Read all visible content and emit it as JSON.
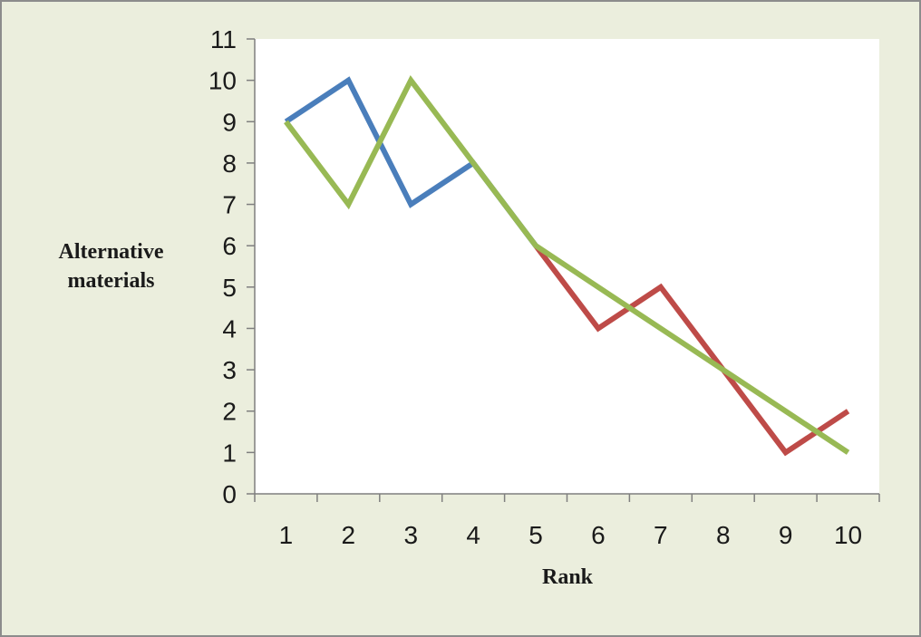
{
  "chart_data": {
    "type": "line",
    "title": "",
    "xlabel": "Rank",
    "ylabel_lines": [
      "Alternative",
      "materials"
    ],
    "x": [
      1,
      2,
      3,
      4,
      5,
      6,
      7,
      8,
      9,
      10
    ],
    "ylim": [
      0,
      11
    ],
    "yticks": [
      0,
      1,
      2,
      3,
      4,
      5,
      6,
      7,
      8,
      9,
      10,
      11
    ],
    "grid": false,
    "legend": "none",
    "series": [
      {
        "color": "#4a7ebb",
        "values": [
          9,
          10,
          7,
          8,
          6,
          4,
          5,
          3,
          1,
          2
        ]
      },
      {
        "color": "#be4b48",
        "values": [
          9,
          10,
          7,
          8,
          6,
          4,
          5,
          3,
          1,
          2
        ]
      },
      {
        "color": "#98b954",
        "values": [
          9,
          7,
          10,
          8,
          6,
          5,
          4,
          3,
          2,
          1
        ]
      }
    ],
    "series_segments": [
      {
        "series": 0,
        "from_index": 0,
        "to_index": 4
      },
      {
        "series": 1,
        "from_index": 4,
        "to_index": 9
      },
      {
        "series": 2,
        "from_index": 0,
        "to_index": 9
      }
    ],
    "colors": {
      "background": "#ebeedd",
      "plot_area": "#ffffff",
      "axis": "#7f7f7f"
    }
  }
}
